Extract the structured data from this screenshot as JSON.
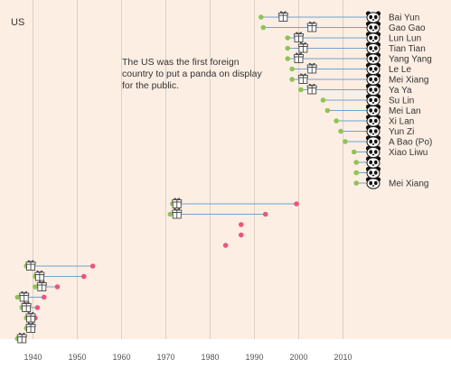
{
  "chart_data": {
    "type": "scatter",
    "title": "",
    "region_label": "US",
    "xlabel": "",
    "ylabel": "",
    "x_ticks": [
      "1940",
      "1950",
      "1960",
      "1970",
      "1980",
      "1990",
      "2000",
      "2010"
    ],
    "xlim": [
      1933,
      2024
    ],
    "grid": true,
    "annotation": "The US was the first foreign country to put a panda on display for the public.",
    "annotation_lines": [
      "The US was the first foreign",
      "country to put a panda on display",
      "for the public."
    ],
    "legend": "none",
    "colors": {
      "background": "#fdf0e6",
      "plot_background": "#fdeee4",
      "gridline": "#dccfc4",
      "arrival": "#8fc454",
      "departure": "#e9557f",
      "connector": "#6fa3cf",
      "gift_icon": "#444444"
    },
    "pandas": [
      {
        "name": "Bai Yun",
        "arrival": 1991.5,
        "gift": 1996.5,
        "departure": null,
        "current": true
      },
      {
        "name": "Gao Gao",
        "arrival": 1992,
        "gift": 2003,
        "departure": null,
        "current": true
      },
      {
        "name": "Lun Lun",
        "arrival": 1997.5,
        "gift": 2000,
        "departure": null,
        "current": true
      },
      {
        "name": "Tian Tian",
        "arrival": 1997.5,
        "gift": 2001,
        "departure": null,
        "current": true
      },
      {
        "name": "Yang Yang",
        "arrival": 1997.5,
        "gift": 2000,
        "departure": null,
        "current": true
      },
      {
        "name": "Le Le",
        "arrival": 1998.5,
        "gift": 2003,
        "departure": null,
        "current": true
      },
      {
        "name": "Mei Xiang",
        "arrival": 1998.5,
        "gift": 2001,
        "departure": null,
        "current": true
      },
      {
        "name": "Ya Ya",
        "arrival": 2000.5,
        "gift": 2003,
        "departure": null,
        "current": true
      },
      {
        "name": "Su Lin",
        "arrival": 2005.5,
        "gift": null,
        "departure": null,
        "current": true
      },
      {
        "name": "Mei Lan",
        "arrival": 2006.5,
        "gift": null,
        "departure": null,
        "current": true
      },
      {
        "name": "Xi Lan",
        "arrival": 2008.5,
        "gift": null,
        "departure": null,
        "current": true
      },
      {
        "name": "Yun Zi",
        "arrival": 2009.5,
        "gift": null,
        "departure": null,
        "current": true
      },
      {
        "name": "A Bao (Po)",
        "arrival": 2010.5,
        "gift": null,
        "departure": null,
        "current": true
      },
      {
        "name": "Xiao Liwu",
        "arrival": 2012.5,
        "gift": null,
        "departure": null,
        "current": true
      },
      {
        "name": "",
        "arrival": 2013,
        "gift": null,
        "departure": null,
        "current": true
      },
      {
        "name": "",
        "arrival": 2013,
        "gift": null,
        "departure": null,
        "current": true
      },
      {
        "name": "Mei Xiang",
        "arrival": 2013,
        "gift": null,
        "departure": null,
        "current": true
      },
      {
        "name": "",
        "arrival": null,
        "gift": null,
        "departure": null,
        "current": false
      },
      {
        "name": "",
        "arrival": 1971.5,
        "gift": 1972.5,
        "departure": 1999.5,
        "current": false
      },
      {
        "name": "",
        "arrival": 1971,
        "gift": 1972.5,
        "departure": 1992.5,
        "current": false
      },
      {
        "name": "",
        "arrival": null,
        "gift": null,
        "departure": 1987,
        "current": false
      },
      {
        "name": "",
        "arrival": null,
        "gift": null,
        "departure": 1987,
        "current": false
      },
      {
        "name": "",
        "arrival": null,
        "gift": null,
        "departure": 1983.5,
        "current": false
      },
      {
        "name": "",
        "arrival": null,
        "gift": null,
        "departure": null,
        "current": false
      },
      {
        "name": "",
        "arrival": 1938.5,
        "gift": 1939.5,
        "departure": 1953.5,
        "current": false
      },
      {
        "name": "",
        "arrival": 1940.5,
        "gift": 1941.5,
        "departure": 1951.5,
        "current": false
      },
      {
        "name": "",
        "arrival": 1940.5,
        "gift": 1942,
        "departure": 1945.5,
        "current": false
      },
      {
        "name": "",
        "arrival": 1936.5,
        "gift": 1938,
        "departure": 1942.5,
        "current": false
      },
      {
        "name": "",
        "arrival": 1937.5,
        "gift": 1938.5,
        "departure": 1941,
        "current": false
      },
      {
        "name": "",
        "arrival": 1938.5,
        "gift": 1939.5,
        "departure": 1940.5,
        "current": false
      },
      {
        "name": "",
        "arrival": 1938.5,
        "gift": 1939.5,
        "departure": 1940,
        "current": false
      },
      {
        "name": "",
        "arrival": 1936.5,
        "gift": 1937.5,
        "departure": 1937.5,
        "current": false
      }
    ]
  }
}
